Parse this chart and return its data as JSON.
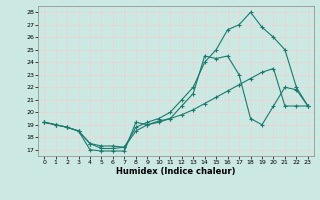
{
  "xlabel": "Humidex (Indice chaleur)",
  "background_color": "#cce8e2",
  "grid_color": "#e8d8d8",
  "line_color": "#1a7a6e",
  "xlim": [
    -0.5,
    23.5
  ],
  "ylim": [
    16.5,
    28.5
  ],
  "yticks": [
    17,
    18,
    19,
    20,
    21,
    22,
    23,
    24,
    25,
    26,
    27,
    28
  ],
  "xticks": [
    0,
    1,
    2,
    3,
    4,
    5,
    6,
    7,
    8,
    9,
    10,
    11,
    12,
    13,
    14,
    15,
    16,
    17,
    18,
    19,
    20,
    21,
    22,
    23
  ],
  "line1_x": [
    0,
    1,
    2,
    3,
    4,
    5,
    6,
    7,
    8,
    9,
    10,
    11,
    12,
    13,
    14,
    15,
    16,
    17,
    18,
    19,
    20,
    21,
    22,
    23
  ],
  "line1_y": [
    19.2,
    19.0,
    18.8,
    18.5,
    17.5,
    17.1,
    17.1,
    17.2,
    18.8,
    19.2,
    19.5,
    20.0,
    21.0,
    22.0,
    24.0,
    25.0,
    26.6,
    27.0,
    28.0,
    26.8,
    26.0,
    25.0,
    22.0,
    20.5
  ],
  "line2_x": [
    0,
    1,
    2,
    3,
    4,
    5,
    6,
    7,
    8,
    9,
    10,
    11,
    12,
    13,
    14,
    15,
    16,
    17,
    18,
    19,
    20,
    21,
    22,
    23
  ],
  "line2_y": [
    19.2,
    19.0,
    18.8,
    18.5,
    17.0,
    16.9,
    16.9,
    16.9,
    19.2,
    19.0,
    19.2,
    19.5,
    20.5,
    21.5,
    24.5,
    24.3,
    24.5,
    23.0,
    19.5,
    19.0,
    20.5,
    22.0,
    21.8,
    20.5
  ],
  "line3_x": [
    0,
    1,
    2,
    3,
    4,
    5,
    6,
    7,
    8,
    9,
    10,
    11,
    12,
    13,
    14,
    15,
    16,
    17,
    18,
    19,
    20,
    21,
    22,
    23
  ],
  "line3_y": [
    19.2,
    19.0,
    18.8,
    18.5,
    17.5,
    17.3,
    17.3,
    17.2,
    18.5,
    19.0,
    19.3,
    19.5,
    19.8,
    20.2,
    20.7,
    21.2,
    21.7,
    22.2,
    22.7,
    23.2,
    23.5,
    20.5,
    20.5,
    20.5
  ]
}
